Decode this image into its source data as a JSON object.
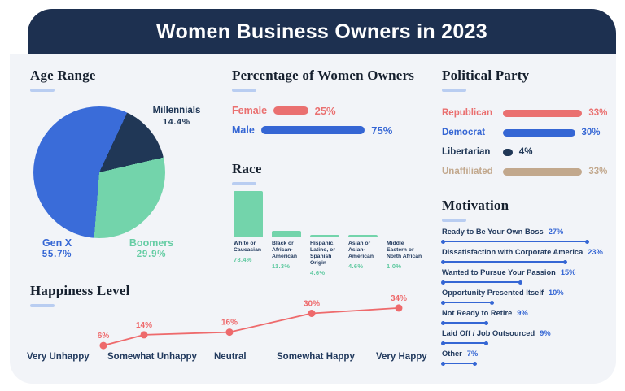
{
  "header": {
    "title": "Women Business Owners in 2023"
  },
  "colors": {
    "page_bg": "#ffffff",
    "header_bg": "#1d3050",
    "body_bg": "#f2f4f8",
    "underline": "#b9cdf1",
    "heading_text": "#16202e",
    "navy": "#203756",
    "blue": "#3566d4",
    "teal": "#73d4ab",
    "teal_text": "#5fc9a0",
    "coral": "#ea7070",
    "tan": "#c2a88d"
  },
  "chart_data": [
    {
      "id": "age_range",
      "type": "pie",
      "title": "Age Range",
      "start_angle_deg": 25,
      "slices": [
        {
          "label": "Gen X",
          "value": 55.7,
          "display": "55.7%",
          "color": "#3a6cd9",
          "label_color": "#3566d4"
        },
        {
          "label": "Boomers",
          "value": 29.9,
          "display": "29.9%",
          "color": "#73d4ab",
          "label_color": "#66cda4"
        },
        {
          "label": "Millennials",
          "value": 14.4,
          "display": "14.4%",
          "color": "#203756",
          "label_color": "#203756"
        }
      ]
    },
    {
      "id": "women_owners",
      "type": "bar",
      "title": "Percentage of Women Owners",
      "bars": [
        {
          "label": "Female",
          "value": 25,
          "display": "25%",
          "color": "#ea7070"
        },
        {
          "label": "Male",
          "value": 75,
          "display": "75%",
          "color": "#3566d4"
        }
      ]
    },
    {
      "id": "race",
      "type": "bar",
      "title": "Race",
      "bar_color": "#73d4ab",
      "categories": [
        "White or Caucasian",
        "Black or African-American",
        "Hispanic, Latino, or Spanish Origin",
        "Asian or Asian-American",
        "Middle Eastern or North African"
      ],
      "values": [
        78.4,
        11.3,
        4.6,
        4.6,
        1.0
      ],
      "displays": [
        "78.4%",
        "11.3%",
        "4.6%",
        "4.6%",
        "1.0%"
      ]
    },
    {
      "id": "political_party",
      "type": "bar",
      "title": "Political Party",
      "bars": [
        {
          "label": "Republican",
          "value": 33,
          "display": "33%",
          "color": "#ea7070"
        },
        {
          "label": "Democrat",
          "value": 30,
          "display": "30%",
          "color": "#3566d4"
        },
        {
          "label": "Libertarian",
          "value": 4,
          "display": "4%",
          "color": "#203756"
        },
        {
          "label": "Unaffiliated",
          "value": 33,
          "display": "33%",
          "color": "#c2a88d"
        }
      ]
    },
    {
      "id": "motivation",
      "type": "bar",
      "title": "Motivation",
      "line_color": "#3566d4",
      "items": [
        {
          "label": "Ready to Be Your Own Boss",
          "value": 27,
          "display": "27%"
        },
        {
          "label": "Dissatisfaction with Corporate America",
          "value": 23,
          "display": "23%"
        },
        {
          "label": "Wanted to Pursue Your Passion",
          "value": 15,
          "display": "15%"
        },
        {
          "label": "Opportunity Presented Itself",
          "value": 10,
          "display": "10%"
        },
        {
          "label": "Not Ready to Retire",
          "value": 9,
          "display": "9%"
        },
        {
          "label": "Laid Off / Job Outsourced",
          "value": 9,
          "display": "9%"
        },
        {
          "label": "Other",
          "value": 7,
          "display": "7%"
        }
      ]
    },
    {
      "id": "happiness_level",
      "type": "line",
      "title": "Happiness Level",
      "line_color": "#ee6a6c",
      "categories": [
        "Very Unhappy",
        "Somewhat Unhappy",
        "Neutral",
        "Somewhat Happy",
        "Very Happy"
      ],
      "values": [
        6,
        14,
        16,
        30,
        34
      ],
      "displays": [
        "6%",
        "14%",
        "16%",
        "30%",
        "34%"
      ]
    }
  ]
}
